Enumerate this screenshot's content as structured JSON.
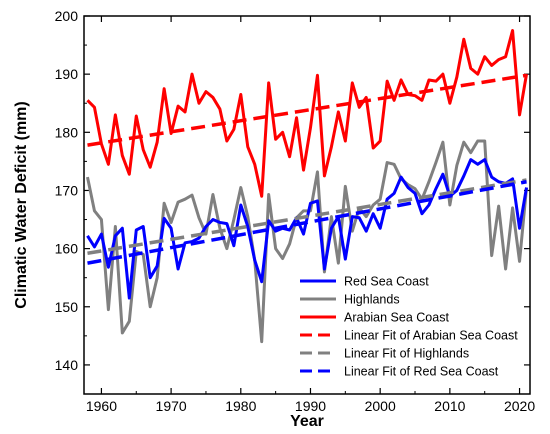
{
  "chart_data": {
    "type": "line",
    "title": "",
    "xlabel": "Year",
    "ylabel": "Climatic Water Deficit (mm)",
    "xlim": [
      1957.5,
      2021.5
    ],
    "ylim": [
      135,
      200
    ],
    "xticks": [
      1960,
      1970,
      1980,
      1990,
      2000,
      2010,
      2020
    ],
    "yticks": [
      140,
      150,
      160,
      170,
      180,
      190,
      200
    ],
    "grid": false,
    "legend_position": "bottom-right",
    "x": [
      1958,
      1959,
      1960,
      1961,
      1962,
      1963,
      1964,
      1965,
      1966,
      1967,
      1968,
      1969,
      1970,
      1971,
      1972,
      1973,
      1974,
      1975,
      1976,
      1977,
      1978,
      1979,
      1980,
      1981,
      1982,
      1983,
      1984,
      1985,
      1986,
      1987,
      1988,
      1989,
      1990,
      1991,
      1992,
      1993,
      1994,
      1995,
      1996,
      1997,
      1998,
      1999,
      2000,
      2001,
      2002,
      2003,
      2004,
      2005,
      2006,
      2007,
      2008,
      2009,
      2010,
      2011,
      2012,
      2013,
      2014,
      2015,
      2016,
      2017,
      2018,
      2019,
      2020,
      2021
    ],
    "series": [
      {
        "name": "Red Sea Coast",
        "color": "#0000ff",
        "style": "solid",
        "values": [
          162.2,
          160.3,
          162.5,
          156.8,
          162.2,
          163.5,
          151.5,
          163.2,
          163.8,
          155.0,
          157.0,
          165.2,
          163.5,
          156.5,
          161.0,
          161.2,
          161.8,
          163.8,
          165.0,
          164.5,
          164.3,
          160.5,
          167.5,
          163.8,
          158.0,
          154.3,
          164.8,
          163.0,
          163.5,
          163.2,
          165.3,
          162.5,
          167.8,
          168.2,
          156.5,
          163.5,
          165.5,
          158.2,
          165.5,
          165.3,
          163.0,
          166.0,
          163.5,
          168.5,
          169.5,
          172.3,
          170.5,
          169.5,
          166.0,
          167.5,
          170.3,
          172.8,
          169.0,
          170.0,
          172.5,
          175.3,
          174.5,
          175.3,
          172.3,
          171.5,
          171.2,
          172.0,
          163.5,
          170.5
        ]
      },
      {
        "name": "Highlands",
        "color": "#808080",
        "style": "solid",
        "values": [
          172.3,
          166.5,
          165.0,
          149.5,
          163.8,
          145.5,
          147.5,
          159.5,
          159.0,
          150.0,
          155.0,
          167.8,
          164.5,
          168.0,
          168.5,
          169.2,
          165.3,
          162.5,
          169.3,
          163.5,
          160.0,
          165.0,
          170.5,
          165.5,
          158.0,
          144.0,
          169.3,
          160.0,
          158.3,
          160.8,
          165.3,
          166.5,
          166.5,
          173.2,
          156.0,
          165.5,
          157.5,
          170.7,
          163.0,
          167.0,
          165.5,
          167.5,
          168.5,
          174.8,
          174.5,
          172.0,
          171.0,
          170.3,
          168.5,
          171.5,
          174.8,
          178.3,
          167.5,
          174.3,
          178.3,
          176.5,
          178.5,
          178.5,
          158.8,
          167.3,
          156.5,
          167.0,
          157.8,
          170.5
        ]
      },
      {
        "name": "Arabian Sea Coast",
        "color": "#ff0000",
        "style": "solid",
        "values": [
          185.5,
          184.3,
          178.0,
          174.5,
          183.0,
          176.0,
          172.8,
          182.8,
          177.0,
          174.0,
          178.3,
          187.5,
          179.8,
          184.5,
          183.5,
          190.0,
          185.0,
          187.0,
          186.0,
          184.0,
          178.5,
          180.5,
          186.5,
          177.5,
          174.5,
          169.0,
          188.5,
          178.8,
          180.0,
          175.8,
          182.5,
          173.5,
          180.8,
          189.8,
          172.5,
          177.5,
          183.5,
          178.5,
          188.5,
          184.3,
          186.0,
          177.3,
          178.5,
          188.8,
          185.5,
          189.0,
          186.5,
          186.3,
          185.5,
          189.0,
          188.8,
          190.0,
          185.0,
          189.5,
          196.0,
          191.0,
          190.0,
          193.0,
          191.5,
          192.5,
          193.0,
          197.5,
          183.0,
          190.0
        ]
      },
      {
        "name": "Linear Fit of Arabian Sea Coast",
        "color": "#ff0000",
        "style": "dashed",
        "x": [
          1958,
          2021
        ],
        "values": [
          177.8,
          189.8
        ]
      },
      {
        "name": "Linear Fit of Highlands",
        "color": "#808080",
        "style": "dashed",
        "x": [
          1958,
          2021
        ],
        "values": [
          159.2,
          171.8
        ]
      },
      {
        "name": "Linear Fit of Red Sea Coast",
        "color": "#0000ff",
        "style": "dashed",
        "x": [
          1958,
          2021
        ],
        "values": [
          157.5,
          171.5
        ]
      }
    ]
  }
}
